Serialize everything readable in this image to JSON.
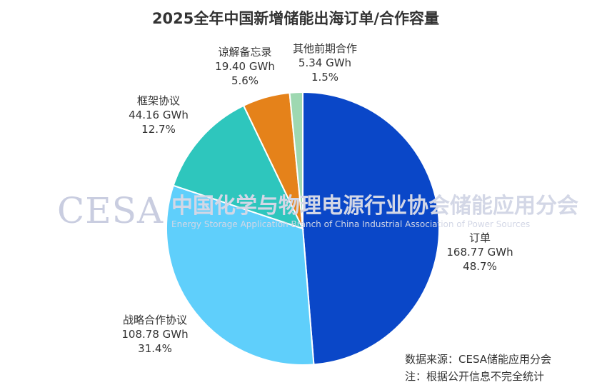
{
  "chart_data": {
    "type": "pie",
    "title": "2025全年中国新增储能出海订单/合作容量",
    "unit": "GWh",
    "slices": [
      {
        "name": "订单",
        "value": 168.77,
        "value_label": "168.77 GWh",
        "percent_label": "48.7%",
        "color": "#0a47c8"
      },
      {
        "name": "战略合作协议",
        "value": 108.78,
        "value_label": "108.78 GWh",
        "percent_label": "31.4%",
        "color": "#5fcffb"
      },
      {
        "name": "框架协议",
        "value": 44.16,
        "value_label": "44.16 GWh",
        "percent_label": "12.7%",
        "color": "#2ec6bd"
      },
      {
        "name": "谅解备忘录",
        "value": 19.4,
        "value_label": "19.40 GWh",
        "percent_label": "5.6%",
        "color": "#e5821a"
      },
      {
        "name": "其他前期合作",
        "value": 5.34,
        "value_label": "5.34 GWh",
        "percent_label": "1.5%",
        "color": "#9ed8b1"
      }
    ]
  },
  "watermark": {
    "logo": "CESA",
    "cn": "中国化学与物理电源行业协会储能应用分会",
    "en": "Energy Storage Application Branch of China Industrial Association of Power Sources"
  },
  "footer": {
    "source": "数据来源：CESA储能应用分会",
    "note": "注：根据公开信息不完全统计"
  }
}
